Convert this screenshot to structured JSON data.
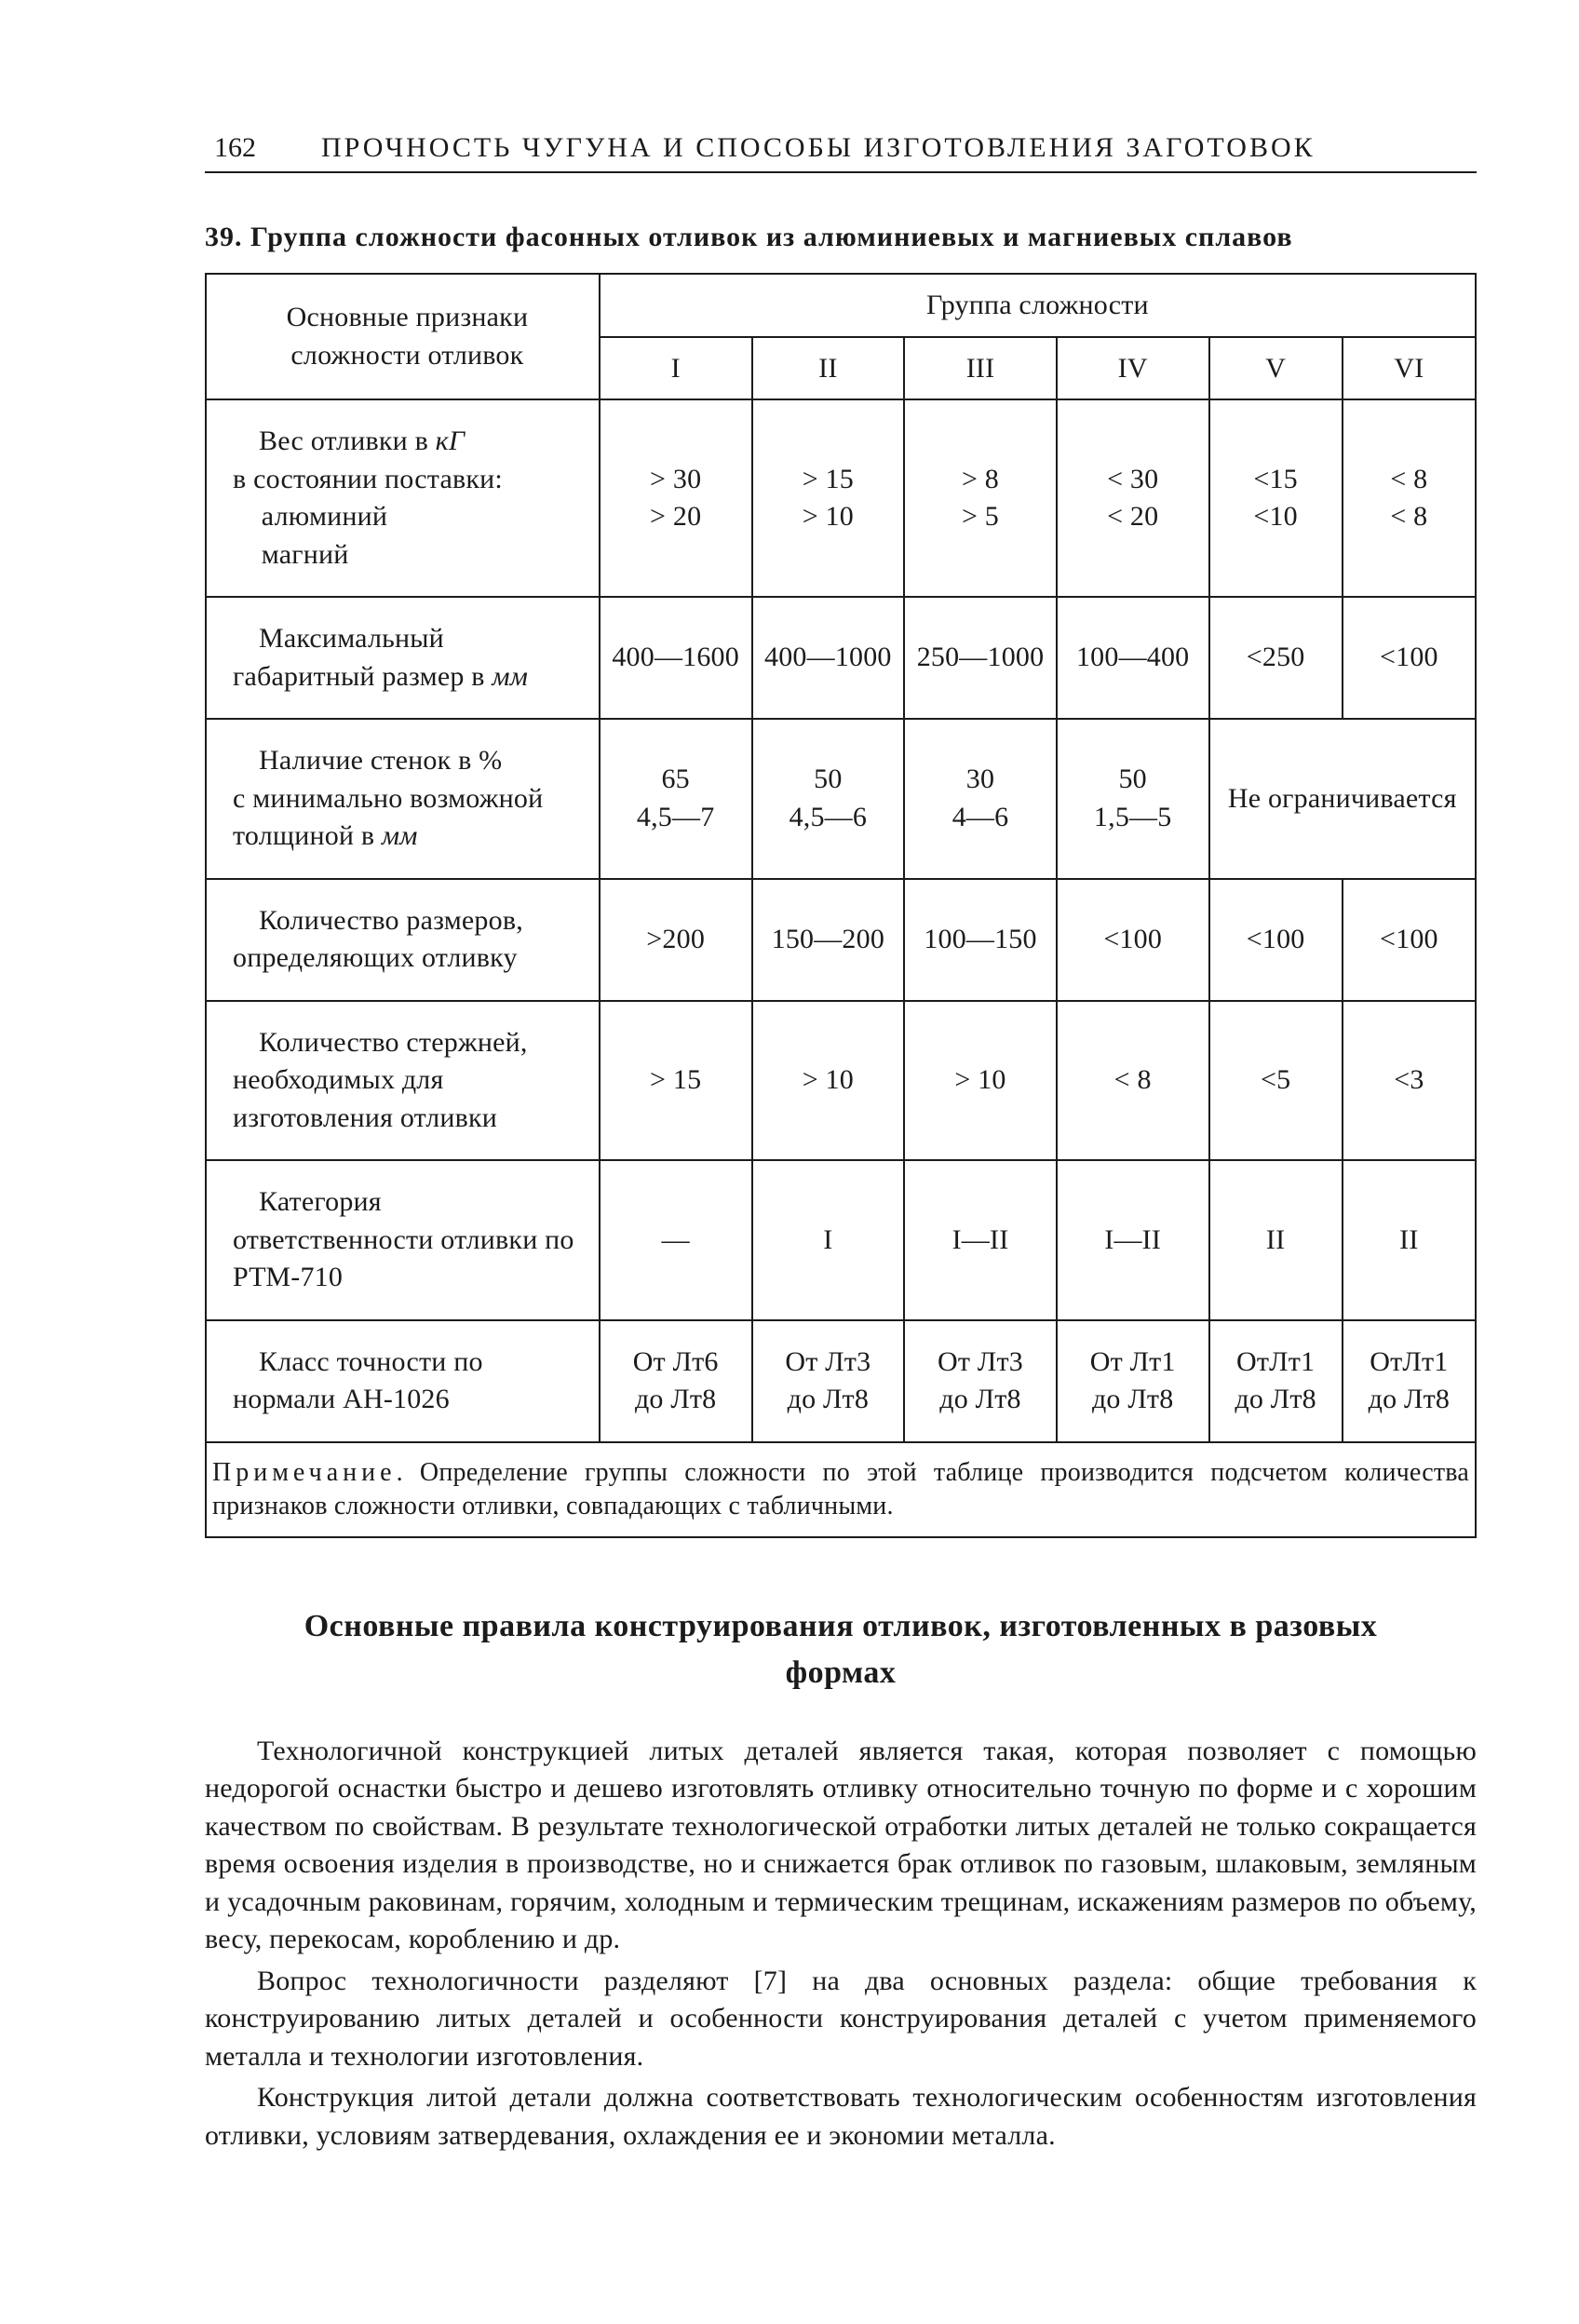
{
  "page_number": "162",
  "running_head": "ПРОЧНОСТЬ ЧУГУНА И СПОСОБЫ ИЗГОТОВЛЕНИЯ ЗАГОТОВОК",
  "table_caption": "39. Группа сложности фасонных отливок из алюминиевых и магниевых сплавов",
  "row_header_title": "Основные признаки сложности отливок",
  "group_header": "Группа сложности",
  "columns": [
    "I",
    "II",
    "III",
    "IV",
    "V",
    "VI"
  ],
  "rows": [
    {
      "attr": "Вес отливки в <i>кГ</i> в&nbsp;состоянии поставки:<br>&nbsp;&nbsp;&nbsp;&nbsp;алюминий<br>&nbsp;&nbsp;&nbsp;&nbsp;магний",
      "vals": [
        "&gt; 30<br>&gt; 20",
        "&gt; 15<br>&gt; 10",
        "&gt; 8<br>&gt; 5",
        "&lt; 30<br>&lt; 20",
        "&lt;15<br>&lt;10",
        "&lt; 8<br>&lt; 8"
      ]
    },
    {
      "attr": "Максимальный габаритный размер в <i>мм</i>",
      "vals": [
        "400—1600",
        "400—1000",
        "250—1000",
        "100—400",
        "&lt;250",
        "&lt;100"
      ]
    },
    {
      "attr": "Наличие стенок в % с&nbsp;минимально возможной толщиной в <i>мм</i>",
      "vals": [
        "65<br>4,5—7",
        "50<br>4,5—6",
        "30<br>4—6",
        "50<br>1,5—5"
      ],
      "merged_tail": "Не ограничивается",
      "merged_span": 2
    },
    {
      "attr": "Количество размеров, определяющих отливку",
      "vals": [
        "&gt;200",
        "150—200",
        "100—150",
        "&lt;100",
        "&lt;100",
        "&lt;100"
      ]
    },
    {
      "attr": "Количество стержней, необходимых для изготовления отливки",
      "vals": [
        "&gt; 15",
        "&gt; 10",
        "&gt; 10",
        "&lt; 8",
        "&lt;5",
        "&lt;3"
      ]
    },
    {
      "attr": "Категория ответственности отливки по РТМ-710",
      "vals": [
        "—",
        "I",
        "I—II",
        "I—II",
        "II",
        "II"
      ]
    },
    {
      "attr": "Класс точности по нормали АН-1026",
      "vals": [
        "От Лт6<br>до Лт8",
        "От Лт3<br>до Лт8",
        "От Лт3<br>до Лт8",
        "От Лт1<br>до Лт8",
        "ОтЛт1<br>до&nbsp;Лт8",
        "ОтЛт1<br>до&nbsp;Лт8"
      ]
    }
  ],
  "table_note": "<span class=\"sp\">Примечание</span>. Определение группы сложности по этой таблице производится подсчетом количества признаков сложности отливки, совпадающих с табличными.",
  "section_title": "Основные правила конструирования отливок, изготовленных в&nbsp;разовых формах",
  "paragraphs": [
    "Технологичной конструкцией литых деталей является такая, которая позволяет с помощью недорогой оснастки быстро и дешево изготовлять отливку относительно точную по форме и с хорошим качеством по свойствам. В результате технологической отработки литых деталей не только сокращается время освоения изделия в производстве, но и снижается брак отливок по газовым, шлаковым, земляным и усадочным раковинам, горячим, холодным и термическим трещинам, искажениям размеров по объему, весу, перекосам, короблению и др.",
    "Вопрос технологичности разделяют [7] на два основных раздела: общие требования к конструированию литых деталей и особенности конструирования деталей с учетом применяемого металла и технологии изготовления.",
    "Конструкция литой детали должна соответствовать технологическим особенностям изготовления отливки, условиям затвердевания, охлаждения ее и экономии металла."
  ],
  "col_widths": {
    "attr_pct": 31,
    "val_pct": [
      12,
      12,
      12,
      12,
      10.5,
      10.5
    ]
  }
}
